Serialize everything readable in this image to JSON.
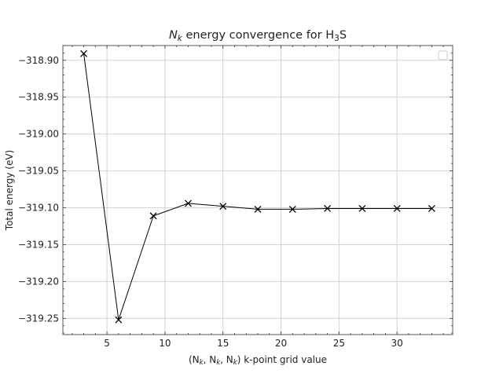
{
  "chart_data": {
    "type": "line",
    "title_italic": "N",
    "title_italic_sub": "k",
    "title_mid": " energy convergence for H",
    "title_sub": "3",
    "title_end": "S",
    "xlabel_parts": {
      "p1": "(N",
      "s1": "k",
      "p2": ", N",
      "s2": "k",
      "p3": ", N",
      "s3": "k",
      "p4": ") k-point grid value"
    },
    "ylabel": "Total energy (eV)",
    "xlim": [
      1.2,
      34.8
    ],
    "ylim": [
      -319.272,
      -318.88
    ],
    "xticks": [
      5,
      10,
      15,
      20,
      25,
      30
    ],
    "xtick_labels": [
      "5",
      "10",
      "15",
      "20",
      "25",
      "30"
    ],
    "yticks": [
      -319.25,
      -319.2,
      -319.15,
      -319.1,
      -319.05,
      -319.0,
      -318.95,
      -318.9
    ],
    "ytick_labels": [
      "−319.25",
      "−319.20",
      "−319.15",
      "−319.10",
      "−319.05",
      "−319.00",
      "−318.95",
      "−318.90"
    ],
    "grid": true,
    "legend": "top-right (empty)",
    "marker": "x",
    "color": "#000000",
    "x": [
      3,
      6,
      9,
      12,
      15,
      18,
      21,
      24,
      27,
      30,
      33
    ],
    "y": [
      -318.891,
      -319.252,
      -319.111,
      -319.094,
      -319.098,
      -319.102,
      -319.102,
      -319.101,
      -319.101,
      -319.101,
      -319.101
    ]
  }
}
